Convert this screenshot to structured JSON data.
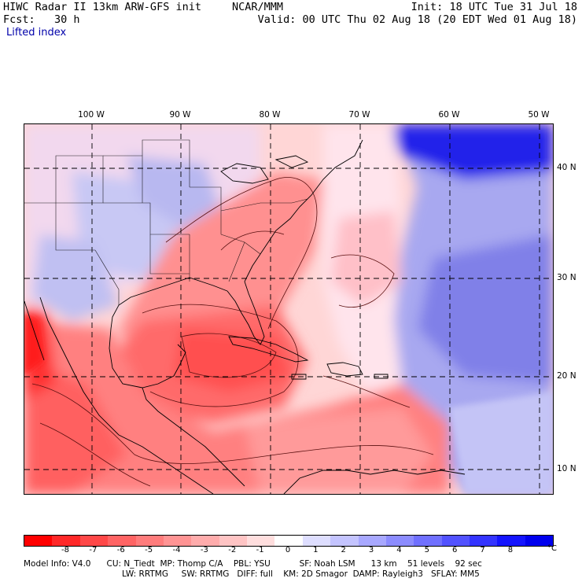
{
  "header": {
    "model_title": "HIWC Radar II 13km ARW-GFS init",
    "org": "NCAR/MMM",
    "init": "Init: 18 UTC Tue 31 Jul 18",
    "forecast": "Fcst:   30 h",
    "valid": "Valid: 00 UTC Thu 02 Aug 18 (20 EDT Wed 01 Aug 18)",
    "field_name": "Lifted index"
  },
  "map": {
    "longitude_labels": [
      "100 W",
      "90 W",
      "80 W",
      "70 W",
      "60 W",
      "50 W"
    ],
    "latitude_labels": [
      "40 N",
      "30 N",
      "20 N",
      "10 N"
    ],
    "colors": {
      "strong_neg": "#ff2020",
      "neg": "#ff7070",
      "weak_neg": "#ffb8b8",
      "neutral": "#fff0f0",
      "weak_pos": "#d8d8ff",
      "pos": "#8a8af0",
      "strong_pos": "#1010e8",
      "outline": "#000000",
      "contour": "#5a1010"
    }
  },
  "legend": {
    "ticks": [
      "-8",
      "-7",
      "-6",
      "-5",
      "-4",
      "-3",
      "-2",
      "-1",
      "0",
      "1",
      "2",
      "3",
      "4",
      "5",
      "6",
      "7",
      "8"
    ],
    "unit": "°C",
    "colors": [
      "#ff0000",
      "#ff2828",
      "#ff4848",
      "#ff6464",
      "#ff7c7c",
      "#ff9494",
      "#ffacac",
      "#ffc4c4",
      "#ffdede",
      "#ffffff",
      "#dedeff",
      "#c4c4ff",
      "#a8a8ff",
      "#8c8cff",
      "#7070ff",
      "#5252ff",
      "#3434ff",
      "#1414ff",
      "#0000ee"
    ]
  },
  "footer": {
    "line1": "Model Info: V4.0      CU: N_Tiedt  MP: Thomp C/A    PBL: YSU           SF: Noah LSM      13 km    51 levels    92 sec",
    "line2": "LW: RRTMG     SW: RRTMG   DIFF: full    KM: 2D Smagor  DAMP: Rayleigh3   SFLAY: MM5"
  }
}
